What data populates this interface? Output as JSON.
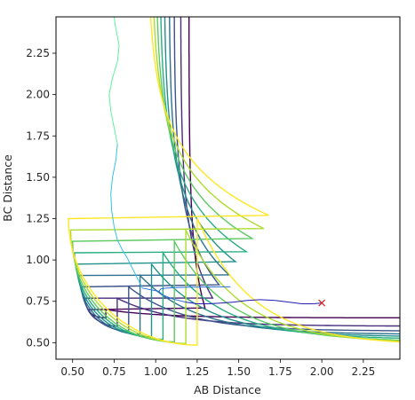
{
  "chart_data": {
    "type": "contour",
    "xlabel": "AB Distance",
    "ylabel": "BC Distance",
    "xlim": [
      0.4,
      2.47
    ],
    "ylim": [
      0.4,
      2.47
    ],
    "xticks": [
      0.5,
      0.75,
      1.0,
      1.25,
      1.5,
      1.75,
      2.0,
      2.25
    ],
    "yticks": [
      0.5,
      0.75,
      1.0,
      1.25,
      1.5,
      1.75,
      2.0,
      2.25
    ],
    "xtick_labels": [
      "0.50",
      "0.75",
      "1.00",
      "1.25",
      "1.50",
      "1.75",
      "2.00",
      "2.25"
    ],
    "ytick_labels": [
      "0.50",
      "0.75",
      "1.00",
      "1.25",
      "1.50",
      "1.75",
      "2.00",
      "2.25"
    ],
    "colormap": "viridis",
    "contour_levels": [
      {
        "color": "#440154",
        "valley_wall": 0.65,
        "repulsive_wall": 0.6
      },
      {
        "color": "#472d7b",
        "valley_wall": 0.6,
        "repulsive_wall": 0.575
      },
      {
        "color": "#3b528b",
        "valley_wall": 0.57,
        "repulsive_wall": 0.555
      },
      {
        "color": "#2c728e",
        "valley_wall": 0.55,
        "repulsive_wall": 0.54
      },
      {
        "color": "#21918c",
        "valley_wall": 0.535,
        "repulsive_wall": 0.525
      },
      {
        "color": "#28ae80",
        "valley_wall": 0.52,
        "repulsive_wall": 0.512
      },
      {
        "color": "#5ec962",
        "valley_wall": 0.505,
        "repulsive_wall": 0.5
      },
      {
        "color": "#addc30",
        "valley_wall": 0.495,
        "repulsive_wall": 0.488
      },
      {
        "color": "#fde725",
        "valley_wall": 0.485,
        "repulsive_wall": 0.475
      }
    ],
    "trajectory": {
      "start": [
        2.0,
        0.74
      ],
      "marker": "x",
      "marker_color": "#d62728",
      "points": [
        [
          2.0,
          0.74
        ],
        [
          1.95,
          0.735
        ],
        [
          1.88,
          0.735
        ],
        [
          1.8,
          0.745
        ],
        [
          1.72,
          0.755
        ],
        [
          1.63,
          0.76
        ],
        [
          1.55,
          0.755
        ],
        [
          1.47,
          0.745
        ],
        [
          1.4,
          0.74
        ],
        [
          1.32,
          0.735
        ],
        [
          1.25,
          0.735
        ],
        [
          1.18,
          0.745
        ],
        [
          1.1,
          0.765
        ],
        [
          1.04,
          0.79
        ],
        [
          1.02,
          0.81
        ],
        [
          1.03,
          0.825
        ],
        [
          1.06,
          0.83
        ],
        [
          1.12,
          0.833
        ],
        [
          1.2,
          0.836
        ],
        [
          1.45,
          0.838
        ],
        [
          1.8,
          0.839
        ],
        [
          2.1,
          0.84
        ],
        [
          2.45,
          0.84
        ],
        [
          1.02,
          0.81
        ],
        [
          0.97,
          0.82
        ],
        [
          0.92,
          0.83
        ],
        [
          0.9,
          0.87
        ],
        [
          0.87,
          0.93
        ],
        [
          0.83,
          1.01
        ],
        [
          0.8,
          1.06
        ],
        [
          0.77,
          1.12
        ],
        [
          0.75,
          1.2
        ],
        [
          0.735,
          1.3
        ],
        [
          0.73,
          1.4
        ],
        [
          0.74,
          1.5
        ],
        [
          0.76,
          1.6
        ],
        [
          0.77,
          1.7
        ],
        [
          0.75,
          1.8
        ],
        [
          0.73,
          1.9
        ],
        [
          0.72,
          2.0
        ],
        [
          0.74,
          2.1
        ],
        [
          0.77,
          2.2
        ],
        [
          0.78,
          2.3
        ],
        [
          0.76,
          2.4
        ],
        [
          0.75,
          2.47
        ]
      ]
    }
  }
}
